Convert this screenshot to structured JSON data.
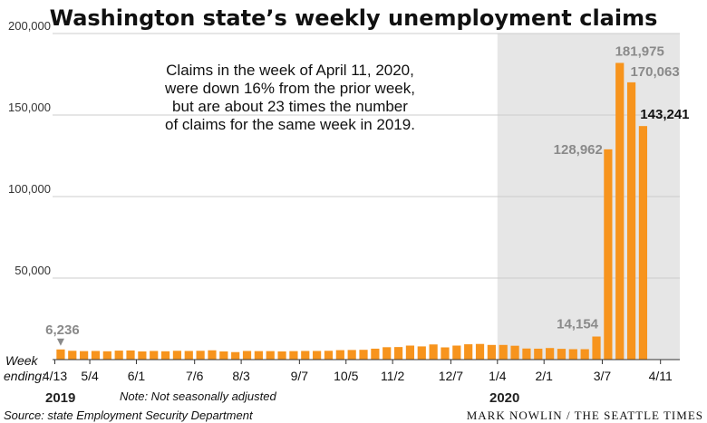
{
  "chart_data": {
    "type": "bar",
    "title": "Washington state’s weekly unemployment claims",
    "xlabel": "Week ending:",
    "ylabel": "",
    "ylim": [
      0,
      200000
    ],
    "yticks": [
      {
        "value": 50000,
        "label": "50,000"
      },
      {
        "value": 100000,
        "label": "100,000"
      },
      {
        "value": 150000,
        "label": "150,000"
      },
      {
        "value": 200000,
        "label": "200,000"
      }
    ],
    "values": [
      6236,
      5400,
      5200,
      5300,
      5100,
      5500,
      5600,
      5000,
      5300,
      5100,
      5400,
      5300,
      5400,
      5700,
      5000,
      4600,
      5300,
      5200,
      5200,
      5000,
      5200,
      5300,
      5300,
      5400,
      5800,
      5900,
      6000,
      6700,
      7600,
      7700,
      8600,
      8100,
      9300,
      7500,
      8600,
      9400,
      9600,
      9000,
      9000,
      8500,
      6800,
      6700,
      7100,
      6600,
      6400,
      6400,
      14154,
      128962,
      181975,
      170063,
      143241
    ],
    "xticks": [
      {
        "index": 0,
        "label": "4/13"
      },
      {
        "index": 3,
        "label": "5/4"
      },
      {
        "index": 7,
        "label": "6/1"
      },
      {
        "index": 12,
        "label": "7/6"
      },
      {
        "index": 16,
        "label": "8/3"
      },
      {
        "index": 21,
        "label": "9/7"
      },
      {
        "index": 25,
        "label": "10/5"
      },
      {
        "index": 29,
        "label": "11/2"
      },
      {
        "index": 34,
        "label": "12/7"
      },
      {
        "index": 38,
        "label": "1/4"
      },
      {
        "index": 42,
        "label": "2/1"
      },
      {
        "index": 47,
        "label": "3/7"
      },
      {
        "index": 52,
        "label": "4/11"
      }
    ],
    "year_labels": [
      "2019",
      "2020"
    ],
    "shaded_region_start_index": 38,
    "bar_labels": [
      {
        "index": 0,
        "text": "6,236",
        "dark": false
      },
      {
        "index": 46,
        "text": "14,154",
        "dark": false
      },
      {
        "index": 47,
        "text": "128,962",
        "dark": false
      },
      {
        "index": 48,
        "text": "181,975",
        "dark": false
      },
      {
        "index": 49,
        "text": "170,063",
        "dark": false
      },
      {
        "index": 50,
        "text": "143,241",
        "dark": true
      }
    ],
    "grid": true,
    "legend": "none"
  },
  "annotation_lines": [
    "Claims in the week of April 11, 2020,",
    "were down 16% from the prior week,",
    "but are about 23 times the number",
    "of claims for the same week in 2019."
  ],
  "week_label_line1": "Week",
  "week_label_line2": "ending:",
  "note": "Note: Not seasonally adjusted",
  "source": "Source: state Employment Security Department",
  "credit": "MARK NOWLIN / THE SEATTLE TIMES",
  "colors": {
    "bar": "#f7941d",
    "shade": "#e6e6e6",
    "grid": "#cccccc",
    "axis": "#333333",
    "label_gray": "#8a8a8a"
  }
}
